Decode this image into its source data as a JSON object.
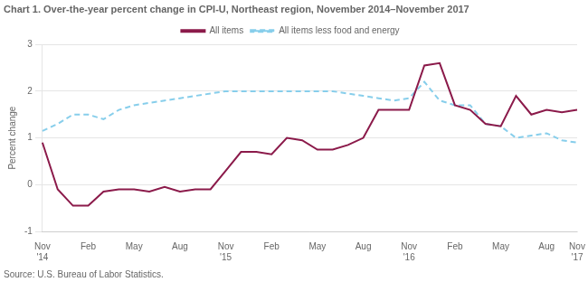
{
  "chart_data": {
    "type": "line",
    "title": "Chart 1. Over-the-year percent change in CPI-U, Northeast region, November 2014–November 2017",
    "y_label": "Percent change",
    "annotations": [
      "Source: U.S. Bureau of Labor Statistics."
    ],
    "categories": [
      "Nov\n'14",
      null,
      null,
      "Feb",
      null,
      null,
      "May",
      null,
      null,
      "Aug",
      null,
      null,
      "Nov\n'15",
      null,
      null,
      "Feb",
      null,
      null,
      "May",
      null,
      null,
      "Aug",
      null,
      null,
      "Nov\n'16",
      null,
      null,
      "Feb",
      null,
      null,
      "May",
      null,
      null,
      "Aug",
      null,
      "Nov\n'17"
    ],
    "series": [
      {
        "name": "All items",
        "color": "#8B1A4A",
        "line_style": "solid",
        "values": [
          0.9,
          -0.1,
          -0.45,
          -0.45,
          -0.15,
          -0.1,
          -0.1,
          -0.15,
          -0.05,
          -0.15,
          -0.1,
          -0.1,
          0.3,
          0.7,
          0.7,
          0.65,
          1.0,
          0.95,
          0.75,
          0.75,
          0.85,
          1.0,
          1.6,
          1.6,
          1.6,
          2.55,
          2.6,
          1.7,
          1.6,
          1.3,
          1.25,
          1.9,
          1.5,
          1.6,
          1.55,
          1.6
        ]
      },
      {
        "name": "All items less food and energy",
        "color": "#87CEEB",
        "line_style": "dashed",
        "values": [
          1.15,
          1.3,
          1.5,
          1.5,
          1.4,
          1.6,
          1.7,
          1.75,
          1.8,
          1.85,
          1.9,
          1.95,
          2.0,
          2.0,
          2.0,
          2.0,
          2.0,
          2.0,
          2.0,
          2.0,
          1.95,
          1.9,
          1.85,
          1.8,
          1.85,
          2.2,
          1.8,
          1.7,
          1.7,
          1.3,
          1.25,
          1.0,
          1.05,
          1.1,
          0.95,
          0.9
        ]
      }
    ],
    "ylim": [
      -1.0,
      3.0
    ],
    "yticks": [
      -1,
      0,
      1,
      2,
      3
    ],
    "grid": true,
    "legend": "top"
  }
}
